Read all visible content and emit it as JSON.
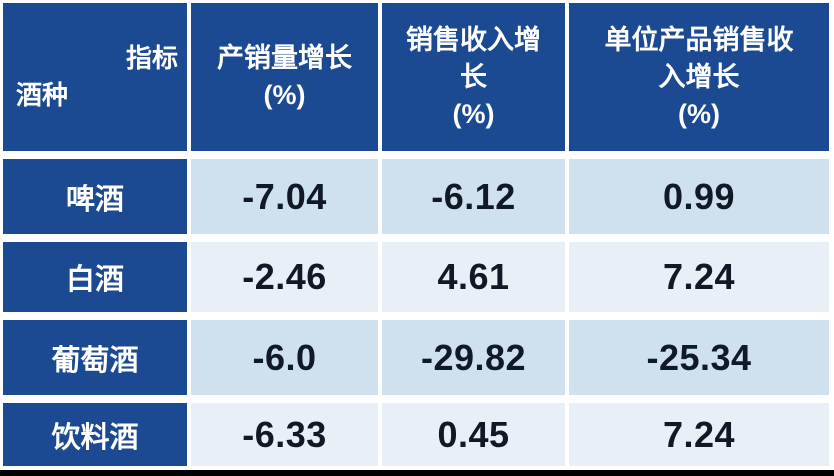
{
  "table": {
    "corner": {
      "top_right": "指标",
      "bottom_left": "酒种"
    },
    "columns": [
      {
        "full": "产销量增长(%)",
        "lines": [
          "产销量增长",
          "(%)"
        ]
      },
      {
        "full": "销售收入增长(%)",
        "lines": [
          "销售收入增",
          "长",
          "(%)"
        ]
      },
      {
        "full": "单位产品销售收入增长(%)",
        "lines": [
          "单位产品销售收",
          "入增长",
          "(%)"
        ]
      }
    ],
    "rows": [
      {
        "label": "啤酒",
        "values": [
          "-7.04",
          "-6.12",
          "0.99"
        ]
      },
      {
        "label": "白酒",
        "values": [
          "-2.46",
          "4.61",
          "7.24"
        ]
      },
      {
        "label": "葡萄酒",
        "values": [
          "-6.0",
          "-29.82",
          "-25.34"
        ]
      },
      {
        "label": "饮料酒",
        "values": [
          "-6.33",
          "0.45",
          "7.24"
        ]
      }
    ]
  },
  "chart_data": {
    "type": "table",
    "corner_top_label": "指标",
    "corner_side_label": "酒种",
    "columns": [
      "产销量增长(%)",
      "销售收入增长(%)",
      "单位产品销售收入增长(%)"
    ],
    "row_categories": [
      "啤酒",
      "白酒",
      "葡萄酒",
      "饮料酒"
    ],
    "values": [
      [
        -7.04,
        -6.12,
        0.99
      ],
      [
        -2.46,
        4.61,
        7.24
      ],
      [
        -6.0,
        -29.82,
        -25.34
      ],
      [
        -6.33,
        0.45,
        7.24
      ]
    ],
    "title": "",
    "legend": "none",
    "grid": "white gaps between cells, alternating light-blue data rows"
  },
  "colors": {
    "header_blue": "#1B4A92",
    "row_light": "#CFE1EF",
    "row_lighter": "#E9EFF7",
    "text_dark": "#111826",
    "text_light": "#FFFFFF",
    "grid_gap": "#FFFFFF",
    "bottom_bar": "#000000"
  }
}
